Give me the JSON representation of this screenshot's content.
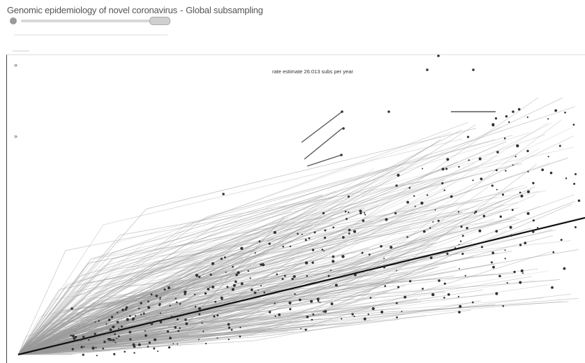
{
  "header": {
    "title": "Genomic epidemiology of novel coronavirus",
    "separator": "-",
    "subtitle_build": "Global subsampling"
  },
  "tree": {
    "rate_estimate": "rate estimate  26.013 subs per year"
  },
  "icons": {
    "zoom_in": "zoom-in-icon",
    "zoom_out": "zoom-out-icon",
    "logo": "nextstrain-logo-icon"
  },
  "colors": {
    "branch": "#9a9a9a",
    "trend": "#111111",
    "node": "#333333"
  }
}
